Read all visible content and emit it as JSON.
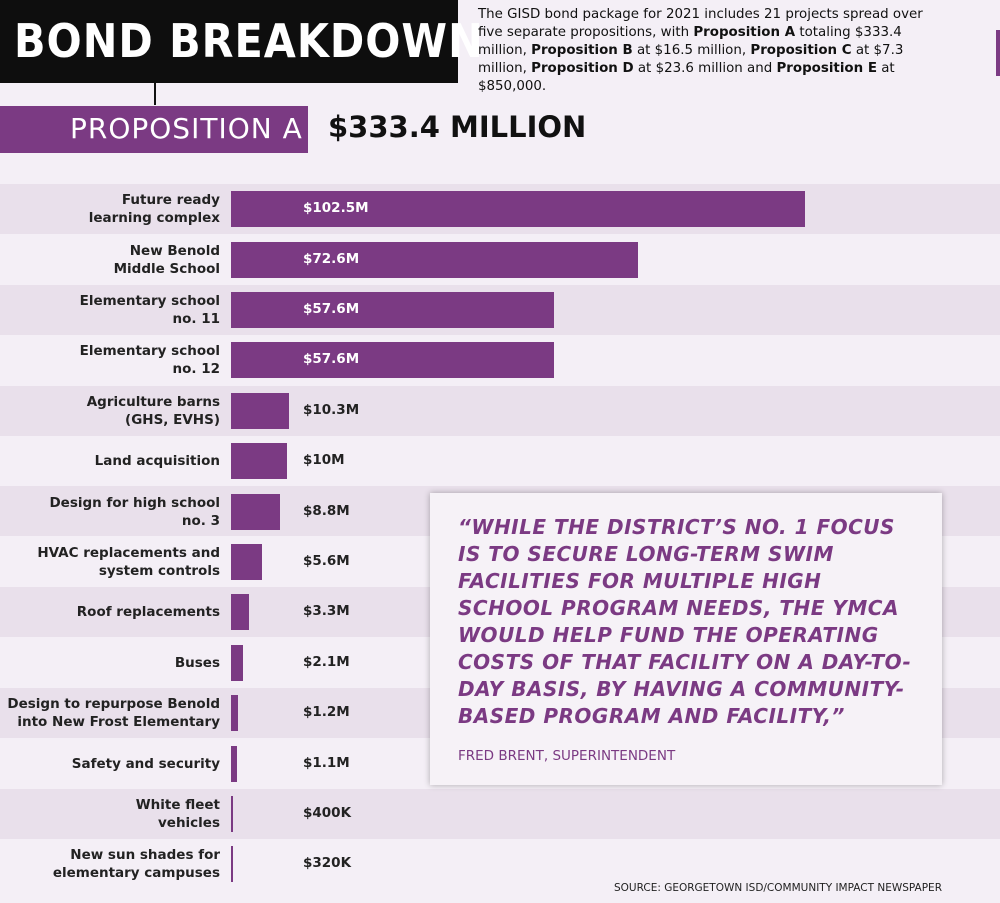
{
  "header": {
    "title": "BOND BREAKDOWN",
    "intro": [
      {
        "text": "The GISD bond package for 2021 includes 21 projects spread over five separate propositions, with ",
        "bold": false
      },
      {
        "text": "Proposition A",
        "bold": true
      },
      {
        "text": " totaling $333.4 million, ",
        "bold": false
      },
      {
        "text": "Proposition B",
        "bold": true
      },
      {
        "text": " at $16.5 million, ",
        "bold": false
      },
      {
        "text": "Proposition C",
        "bold": true
      },
      {
        "text": " at $7.3 million, ",
        "bold": false
      },
      {
        "text": "Proposition D",
        "bold": true
      },
      {
        "text": " at $23.6 million and ",
        "bold": false
      },
      {
        "text": "Proposition E",
        "bold": true
      },
      {
        "text": " at $850,000.",
        "bold": false
      }
    ],
    "proposition": "PROPOSITION A",
    "total": "$333.4 MILLION"
  },
  "chart_data": {
    "type": "bar",
    "orientation": "horizontal",
    "color": "#7b3a83",
    "categories": [
      "Future ready\nlearning complex",
      "New Benold\nMiddle School",
      "Elementary school\nno. 11",
      "Elementary school\nno. 12",
      "Agriculture barns\n(GHS, EVHS)",
      "Land acquisition",
      "Design for high school\nno. 3",
      "HVAC replacements and\nsystem controls",
      "Roof replacements",
      "Buses",
      "Design to repurpose Benold\ninto New Frost Elementary",
      "Safety and security",
      "White fleet\nvehicles",
      "New sun shades for\nelementary campuses"
    ],
    "values": [
      102.5,
      72.6,
      57.6,
      57.6,
      10.3,
      10,
      8.8,
      5.6,
      3.3,
      2.1,
      1.2,
      1.1,
      0.4,
      0.32
    ],
    "value_labels": [
      "$102.5M",
      "$72.6M",
      "$57.6M",
      "$57.6M",
      "$10.3M",
      "$10M",
      "$8.8M",
      "$5.6M",
      "$3.3M",
      "$2.1M",
      "$1.2M",
      "$1.1M",
      "$400K",
      "$320K"
    ]
  },
  "quote": {
    "text": "“WHILE THE DISTRICT’S NO. 1 FOCUS IS TO SECURE LONG-TERM SWIM FACILITIES FOR MULTIPLE HIGH SCHOOL PROGRAM NEEDS, THE YMCA WOULD HELP FUND THE OPERATING COSTS OF THAT FACILITY ON A DAY-TO-DAY BASIS, BY HAVING A COMMUNITY-BASED PROGRAM AND FACILITY,”",
    "attribution": "FRED BRENT, SUPERINTENDENT"
  },
  "source": "SOURCE: GEORGETOWN ISD/COMMUNITY IMPACT NEWSPAPER"
}
